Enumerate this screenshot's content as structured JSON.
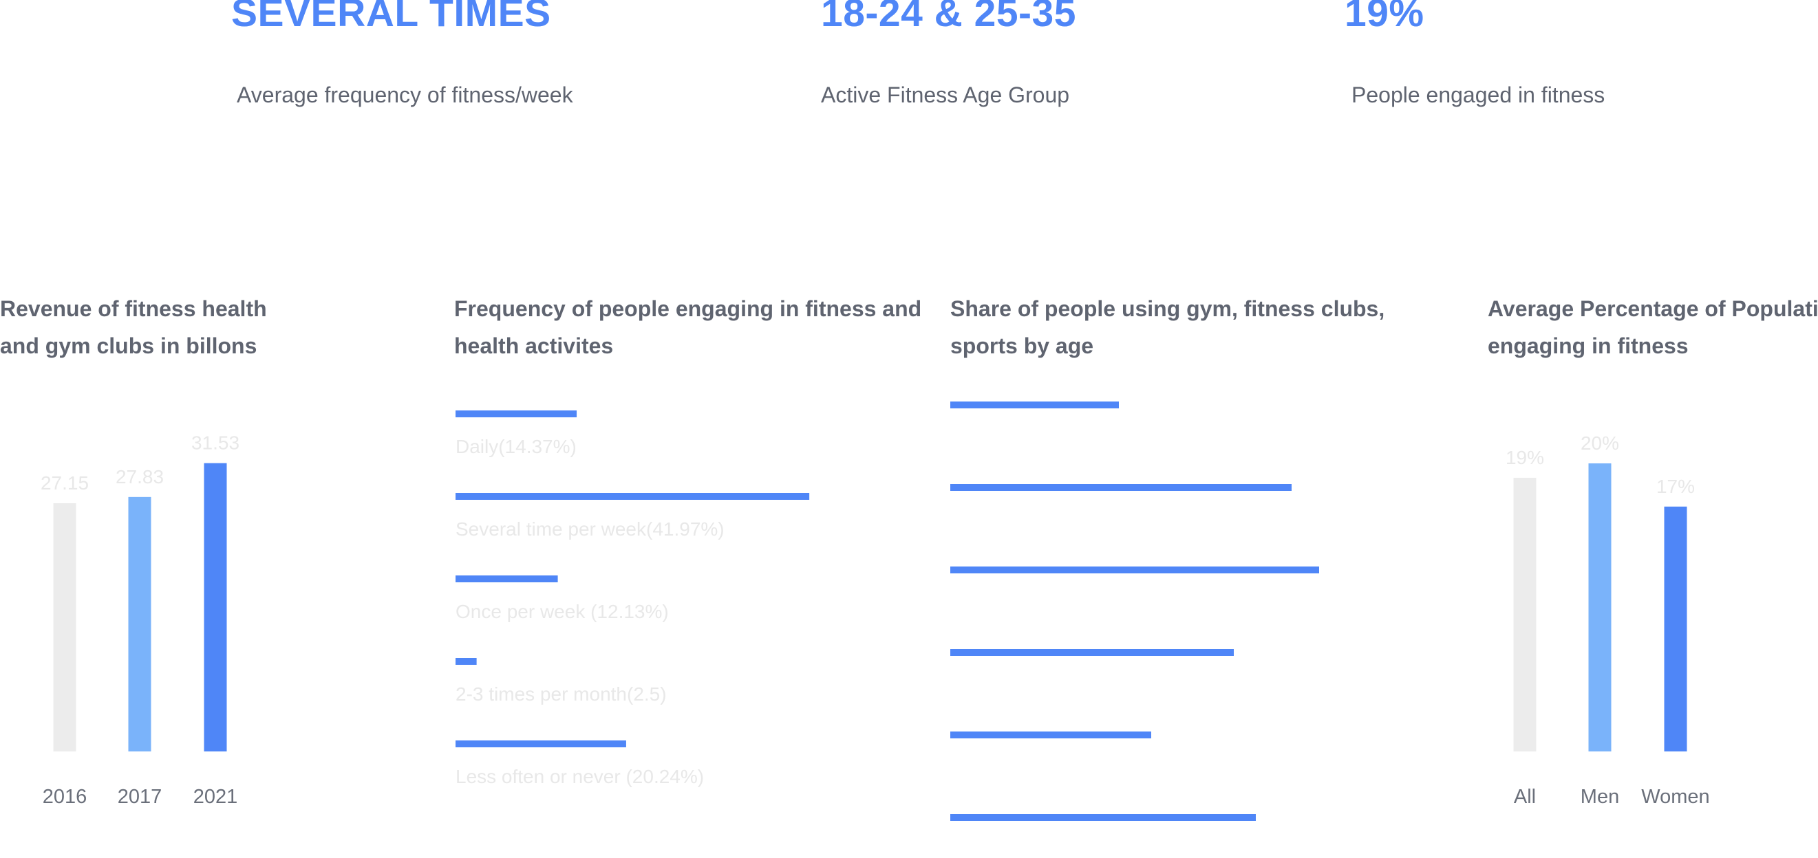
{
  "stats": [
    {
      "value": "SEVERAL TIMES",
      "label": "Average frequency of fitness/week"
    },
    {
      "value": "18-24 & 25-35",
      "label": "Active Fitness Age Group"
    },
    {
      "value": "19%",
      "label": "People engaged in fitness"
    }
  ],
  "colors": {
    "accent": "#4f86f7",
    "light_blue": "#7ab3fa",
    "light_gray": "#ececec",
    "text": "#5f6470",
    "faint_label": "#e8e8e8"
  },
  "chart_data": [
    {
      "type": "bar",
      "title_lines": [
        "Revenue of fitness health",
        "and gym clubs in billons"
      ],
      "categories": [
        "2016",
        "2017",
        "2021"
      ],
      "values": [
        27.15,
        27.83,
        31.53
      ],
      "value_labels": [
        "27.15",
        "27.83",
        "31.53"
      ],
      "bar_colors": [
        "#ececec",
        "#7ab3fa",
        "#4f86f7"
      ]
    },
    {
      "type": "bar",
      "orientation": "horizontal",
      "title_lines": [
        "Frequency of people engaging in fitness and",
        "health activites"
      ],
      "categories": [
        "Daily(14.37%)",
        "Several time per week(41.97%)",
        "Once per week (12.13%)",
        "2-3 times per month(2.5)",
        "Less often or never  (20.24%)"
      ],
      "values": [
        14.37,
        41.97,
        12.13,
        2.5,
        20.24
      ]
    },
    {
      "type": "bar",
      "orientation": "horizontal",
      "title_lines": [
        "Share of people using gym, fitness clubs,",
        "sports by age"
      ],
      "values": [
        24.5,
        49.6,
        53.6,
        41.2,
        29.2,
        44.4
      ]
    },
    {
      "type": "bar",
      "title_lines": [
        "Average Percentage of Population",
        "engaging in fitness"
      ],
      "categories": [
        "All",
        "Men",
        "Women"
      ],
      "values": [
        19,
        20,
        17
      ],
      "value_labels": [
        "19%",
        "20%",
        "17%"
      ],
      "bar_colors": [
        "#ececec",
        "#7ab3fa",
        "#4f86f7"
      ]
    }
  ]
}
